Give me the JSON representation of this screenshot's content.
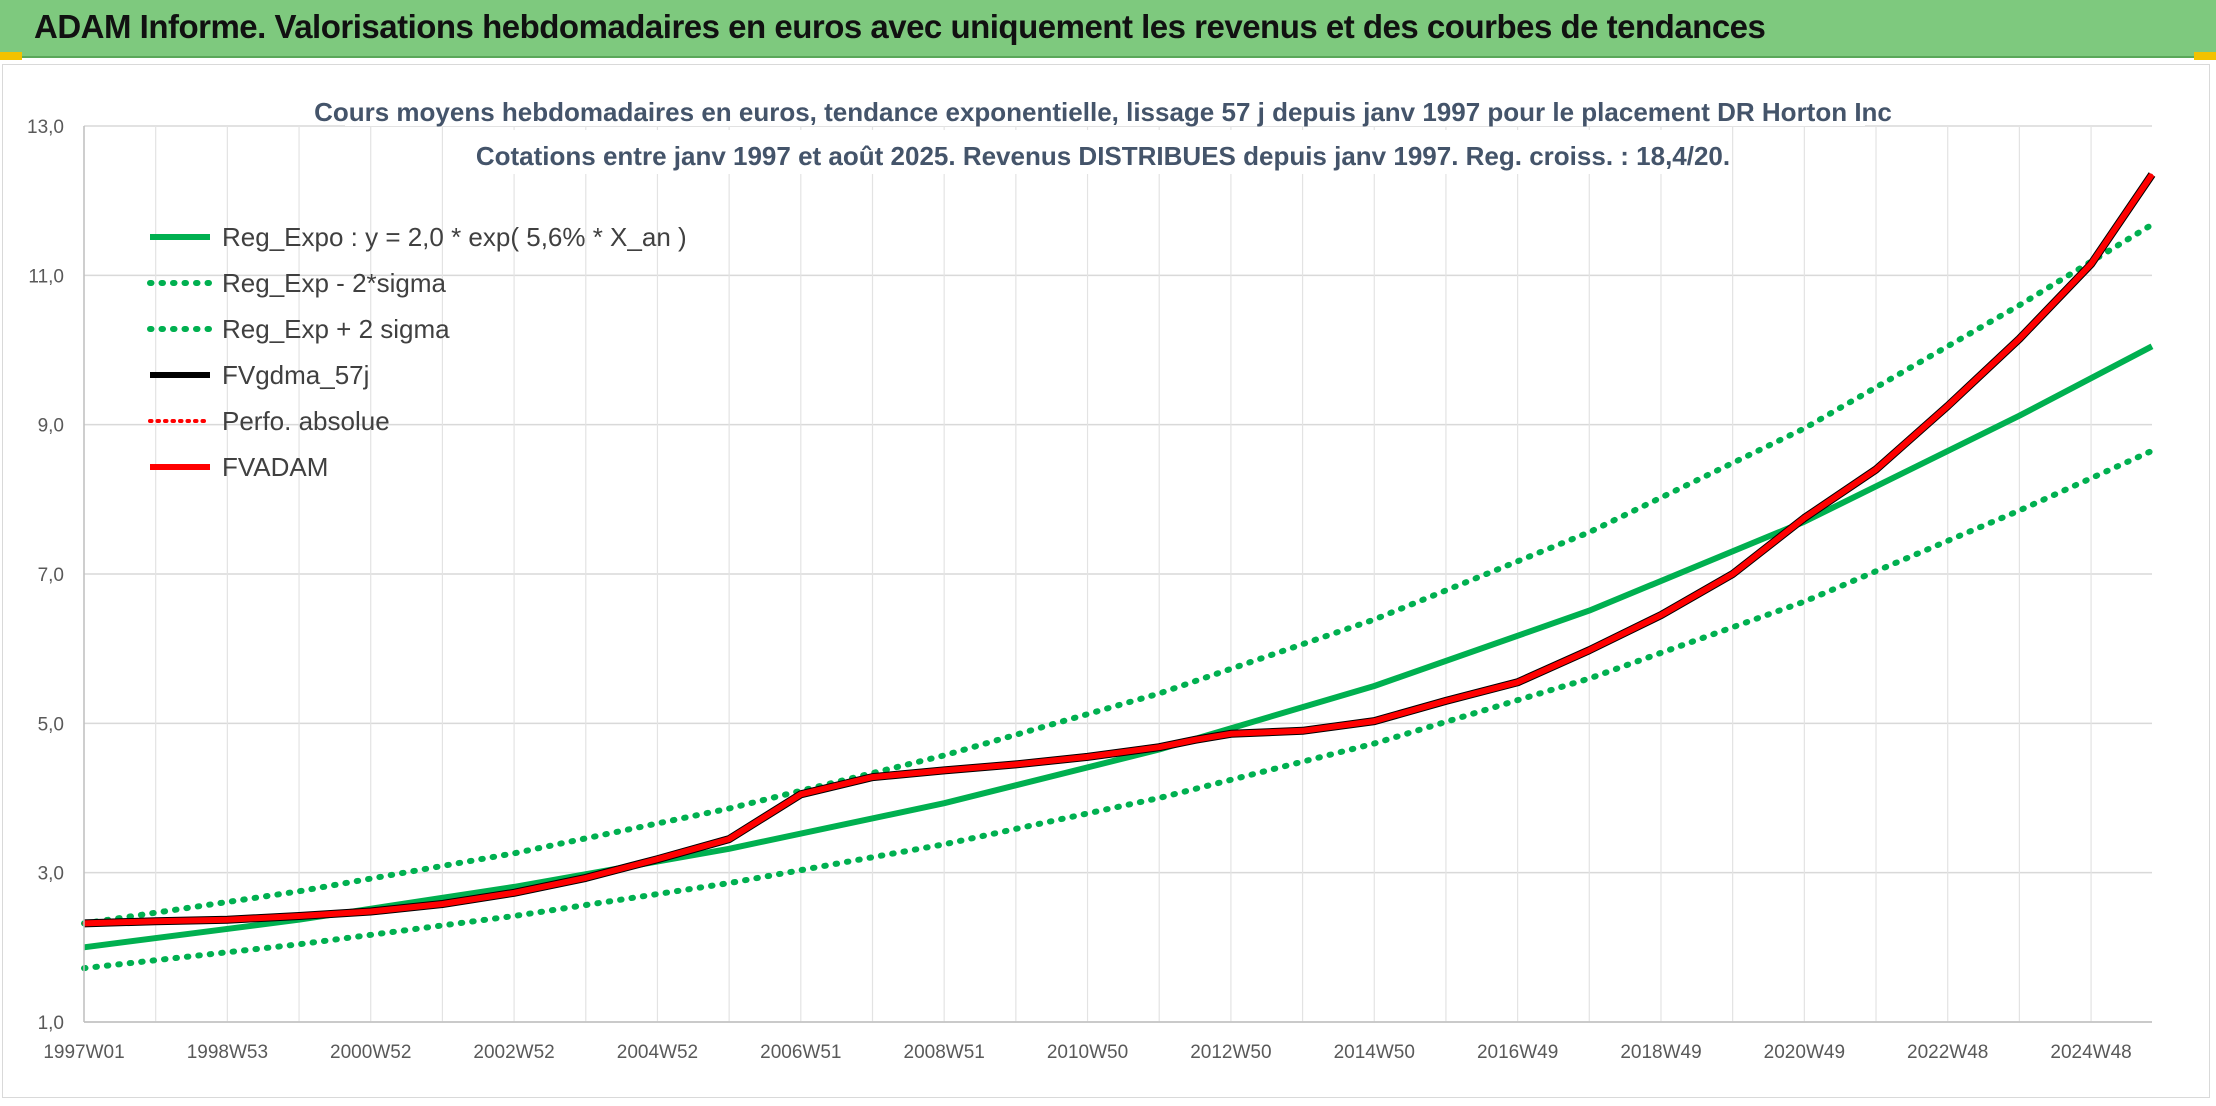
{
  "header": {
    "title": "ADAM Informe. Valorisations hebdomadaires en euros avec uniquement les revenus et des courbes de tendances"
  },
  "colors": {
    "header_bg": "#7ec97e",
    "trend": "#00b050",
    "fvadam": "#ff0000",
    "fvgdma": "#000000",
    "grid": "#d9d9d9"
  },
  "chart_data": {
    "type": "line",
    "title": "Cours moyens hebdomadaires en euros, tendance exponentielle, lissage 57 j depuis janv 1997 pour le placement DR Horton Inc",
    "subtitle": "Cotations entre janv 1997 et août 2025. Revenus DISTRIBUES depuis janv 1997. Reg. croiss. : 18,4/20.",
    "xlabel": "",
    "ylabel": "",
    "x_range": [
      1997.0,
      2025.85
    ],
    "ylim": [
      1.0,
      13.0
    ],
    "y_ticks": [
      "1,0",
      "3,0",
      "5,0",
      "7,0",
      "9,0",
      "11,0",
      "13,0"
    ],
    "x_ticks": [
      {
        "year": 1997.0,
        "label": "1997W01"
      },
      {
        "year": 1999.0,
        "label": "1998W53"
      },
      {
        "year": 2001.0,
        "label": "2000W52"
      },
      {
        "year": 2003.0,
        "label": "2002W52"
      },
      {
        "year": 2005.0,
        "label": "2004W52"
      },
      {
        "year": 2007.0,
        "label": "2006W51"
      },
      {
        "year": 2009.0,
        "label": "2008W51"
      },
      {
        "year": 2011.0,
        "label": "2010W50"
      },
      {
        "year": 2013.0,
        "label": "2012W50"
      },
      {
        "year": 2015.0,
        "label": "2014W50"
      },
      {
        "year": 2017.0,
        "label": "2016W49"
      },
      {
        "year": 2019.0,
        "label": "2018W49"
      },
      {
        "year": 2021.0,
        "label": "2020W49"
      },
      {
        "year": 2023.0,
        "label": "2022W48"
      },
      {
        "year": 2025.0,
        "label": "2024W48"
      }
    ],
    "grid": true,
    "legend_position": "top-left",
    "series": [
      {
        "name": "Reg_Expo : y = 2,0 * exp( 5,6% *  X_an )",
        "style": "solid",
        "color": "#00b050",
        "x": [
          1997,
          2000,
          2003,
          2006,
          2009,
          2012,
          2015,
          2018,
          2021,
          2024,
          2025.85
        ],
        "values": [
          2.0,
          2.37,
          2.81,
          3.32,
          3.93,
          4.65,
          5.5,
          6.51,
          7.7,
          9.12,
          10.05
        ]
      },
      {
        "name": "Reg_Exp - 2*sigma",
        "style": "dotted",
        "color": "#00b050",
        "x": [
          1997,
          2000,
          2003,
          2006,
          2009,
          2012,
          2015,
          2018,
          2021,
          2024,
          2025.85
        ],
        "values": [
          1.72,
          2.04,
          2.42,
          2.86,
          3.38,
          4.0,
          4.73,
          5.6,
          6.63,
          7.85,
          8.65
        ]
      },
      {
        "name": "Reg_Exp + 2 sigma",
        "style": "dotted",
        "color": "#00b050",
        "x": [
          1997,
          2000,
          2003,
          2006,
          2009,
          2012,
          2015,
          2018,
          2021,
          2024,
          2025.85
        ],
        "values": [
          2.32,
          2.75,
          3.26,
          3.86,
          4.57,
          5.4,
          6.39,
          7.56,
          8.95,
          10.6,
          11.68
        ]
      },
      {
        "name": "FVgdma_57j",
        "style": "solid",
        "color": "#000000",
        "x": [
          1997,
          1998,
          1999,
          2000,
          2001,
          2002,
          2003,
          2004,
          2005,
          2006,
          2006.5,
          2007,
          2008,
          2009,
          2010,
          2011,
          2012,
          2012.5,
          2013,
          2014,
          2015,
          2016,
          2017,
          2018,
          2019,
          2020,
          2021,
          2022,
          2023,
          2024,
          2025,
          2025.85
        ],
        "values": [
          2.32,
          2.35,
          2.37,
          2.42,
          2.48,
          2.58,
          2.73,
          2.93,
          3.18,
          3.45,
          3.75,
          4.05,
          4.28,
          4.37,
          4.45,
          4.55,
          4.68,
          4.78,
          4.86,
          4.9,
          5.03,
          5.3,
          5.55,
          5.98,
          6.45,
          7.0,
          7.75,
          8.4,
          9.25,
          10.15,
          11.15,
          12.35
        ]
      },
      {
        "name": "Perfo. absolue",
        "style": "dotted",
        "color": "#ff0000",
        "x": [
          1997,
          1998,
          1999,
          2000,
          2001,
          2002,
          2003,
          2004,
          2005,
          2006,
          2006.5,
          2007,
          2008,
          2009,
          2010,
          2011,
          2012,
          2012.5,
          2013,
          2014,
          2015,
          2016,
          2017,
          2018,
          2019,
          2020,
          2021,
          2022,
          2023,
          2024,
          2025,
          2025.85
        ],
        "values": [
          2.32,
          2.35,
          2.37,
          2.42,
          2.48,
          2.58,
          2.73,
          2.93,
          3.18,
          3.45,
          3.75,
          4.05,
          4.28,
          4.37,
          4.45,
          4.55,
          4.68,
          4.78,
          4.86,
          4.9,
          5.03,
          5.3,
          5.55,
          5.98,
          6.45,
          7.0,
          7.75,
          8.4,
          9.25,
          10.15,
          11.15,
          12.35
        ]
      },
      {
        "name": "FVADAM",
        "style": "solid",
        "color": "#ff0000",
        "x": [
          1997,
          1998,
          1999,
          2000,
          2001,
          2002,
          2003,
          2004,
          2005,
          2006,
          2006.5,
          2007,
          2008,
          2009,
          2010,
          2011,
          2012,
          2012.5,
          2013,
          2014,
          2015,
          2016,
          2017,
          2018,
          2019,
          2020,
          2021,
          2022,
          2023,
          2024,
          2025,
          2025.85
        ],
        "values": [
          2.32,
          2.35,
          2.37,
          2.42,
          2.48,
          2.58,
          2.73,
          2.93,
          3.18,
          3.45,
          3.75,
          4.05,
          4.28,
          4.37,
          4.45,
          4.55,
          4.68,
          4.78,
          4.86,
          4.9,
          5.03,
          5.3,
          5.55,
          5.98,
          6.45,
          7.0,
          7.75,
          8.4,
          9.25,
          10.15,
          11.15,
          12.35
        ]
      }
    ]
  }
}
